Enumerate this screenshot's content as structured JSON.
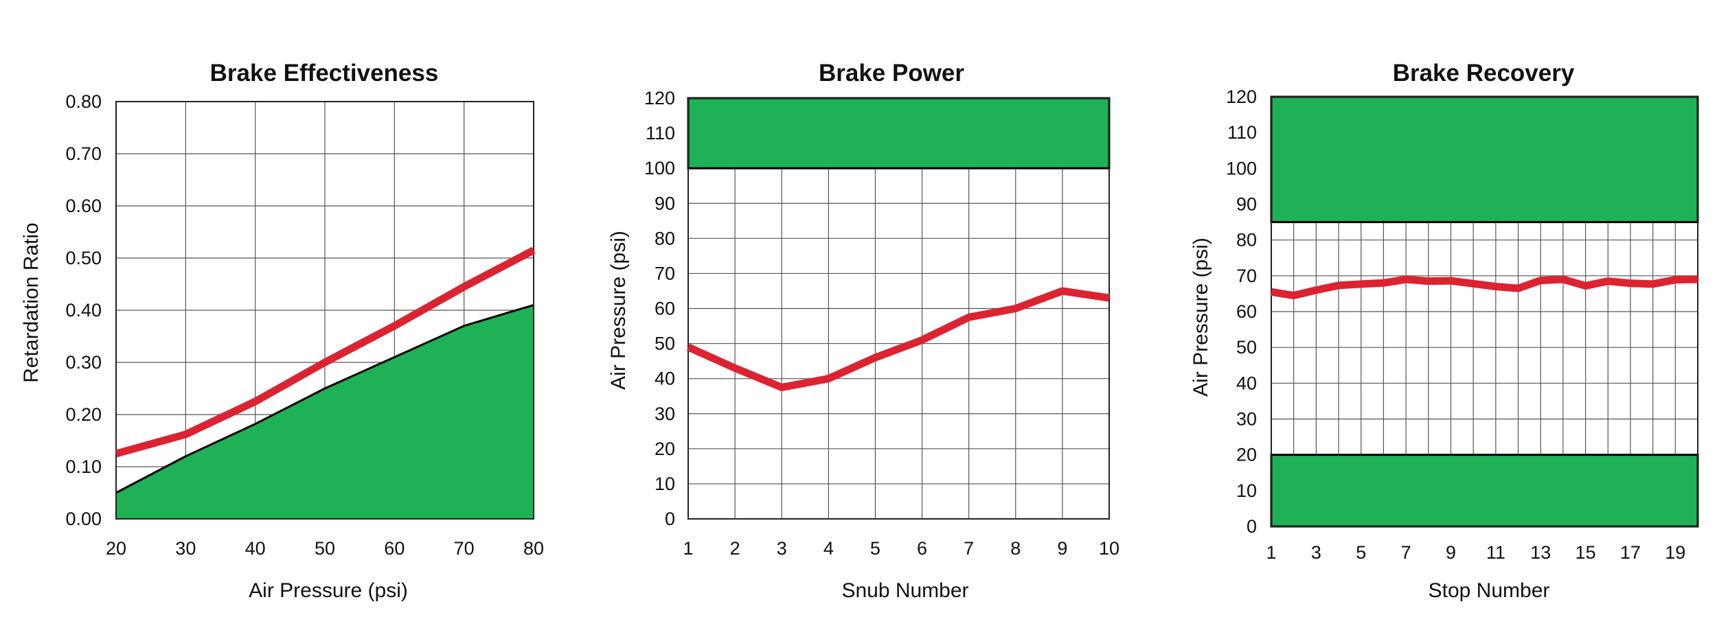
{
  "colors": {
    "line": "#dc2330",
    "fill": "#1fb155",
    "grid": "#555555",
    "background": "#ffffff"
  },
  "chart_data": [
    {
      "type": "area",
      "title": "Brake Effectiveness",
      "xlabel": "Air Pressure (psi)",
      "ylabel": "Retardation Ratio",
      "xlim": [
        20,
        80
      ],
      "ylim": [
        0,
        0.8
      ],
      "x_ticks": [
        "20",
        "30",
        "40",
        "50",
        "60",
        "70",
        "80"
      ],
      "y_ticks": [
        "0.00",
        "0.10",
        "0.20",
        "0.30",
        "0.40",
        "0.50",
        "0.60",
        "0.70",
        "0.80"
      ],
      "grid": true,
      "x": [
        20,
        30,
        40,
        50,
        60,
        70,
        80
      ],
      "series": [
        {
          "values": [
            0.125,
            0.162,
            0.225,
            0.3,
            0.37,
            0.445,
            0.515
          ]
        },
        {
          "values": [
            0.05,
            0.12,
            0.182,
            0.25,
            0.31,
            0.37,
            0.41
          ]
        }
      ]
    },
    {
      "type": "line",
      "title": "Brake Power",
      "xlabel": "Snub Number",
      "ylabel": "Air Pressure (psi)",
      "xlim": [
        1,
        10
      ],
      "ylim": [
        0,
        120
      ],
      "x_ticks": [
        "1",
        "2",
        "3",
        "4",
        "5",
        "6",
        "7",
        "8",
        "9",
        "10"
      ],
      "y_ticks": [
        "0",
        "10",
        "20",
        "30",
        "40",
        "50",
        "60",
        "70",
        "80",
        "90",
        "100",
        "110",
        "120"
      ],
      "grid": true,
      "bands": [
        [
          100,
          120
        ]
      ],
      "x": [
        1,
        2,
        3,
        4,
        5,
        6,
        7,
        8,
        9,
        10
      ],
      "series": [
        {
          "values": [
            49,
            43,
            37.5,
            40,
            46,
            51,
            57.5,
            60,
            65,
            63
          ]
        }
      ]
    },
    {
      "type": "line",
      "title": "Brake Recovery",
      "xlabel": "Stop Number",
      "ylabel": "Air Pressure (psi)",
      "xlim": [
        1,
        20
      ],
      "ylim": [
        0,
        120
      ],
      "x_ticks": [
        "1",
        "3",
        "5",
        "7",
        "9",
        "11",
        "13",
        "15",
        "17",
        "19"
      ],
      "x_tick_values": [
        1,
        3,
        5,
        7,
        9,
        11,
        13,
        15,
        17,
        19
      ],
      "y_ticks": [
        "0",
        "10",
        "20",
        "30",
        "40",
        "50",
        "60",
        "70",
        "80",
        "90",
        "100",
        "110",
        "120"
      ],
      "grid": true,
      "bands": [
        [
          85,
          120
        ],
        [
          0,
          20
        ]
      ],
      "x": [
        1,
        2,
        3,
        4,
        5,
        6,
        7,
        8,
        9,
        10,
        11,
        12,
        13,
        14,
        15,
        16,
        17,
        18,
        19,
        20
      ],
      "series": [
        {
          "values": [
            65.5,
            64.5,
            66,
            67.3,
            67.7,
            68,
            69,
            68.5,
            68.6,
            67.8,
            67,
            66.5,
            68.7,
            69,
            67.2,
            68.5,
            67.9,
            67.7,
            68.9,
            69
          ]
        }
      ]
    }
  ]
}
